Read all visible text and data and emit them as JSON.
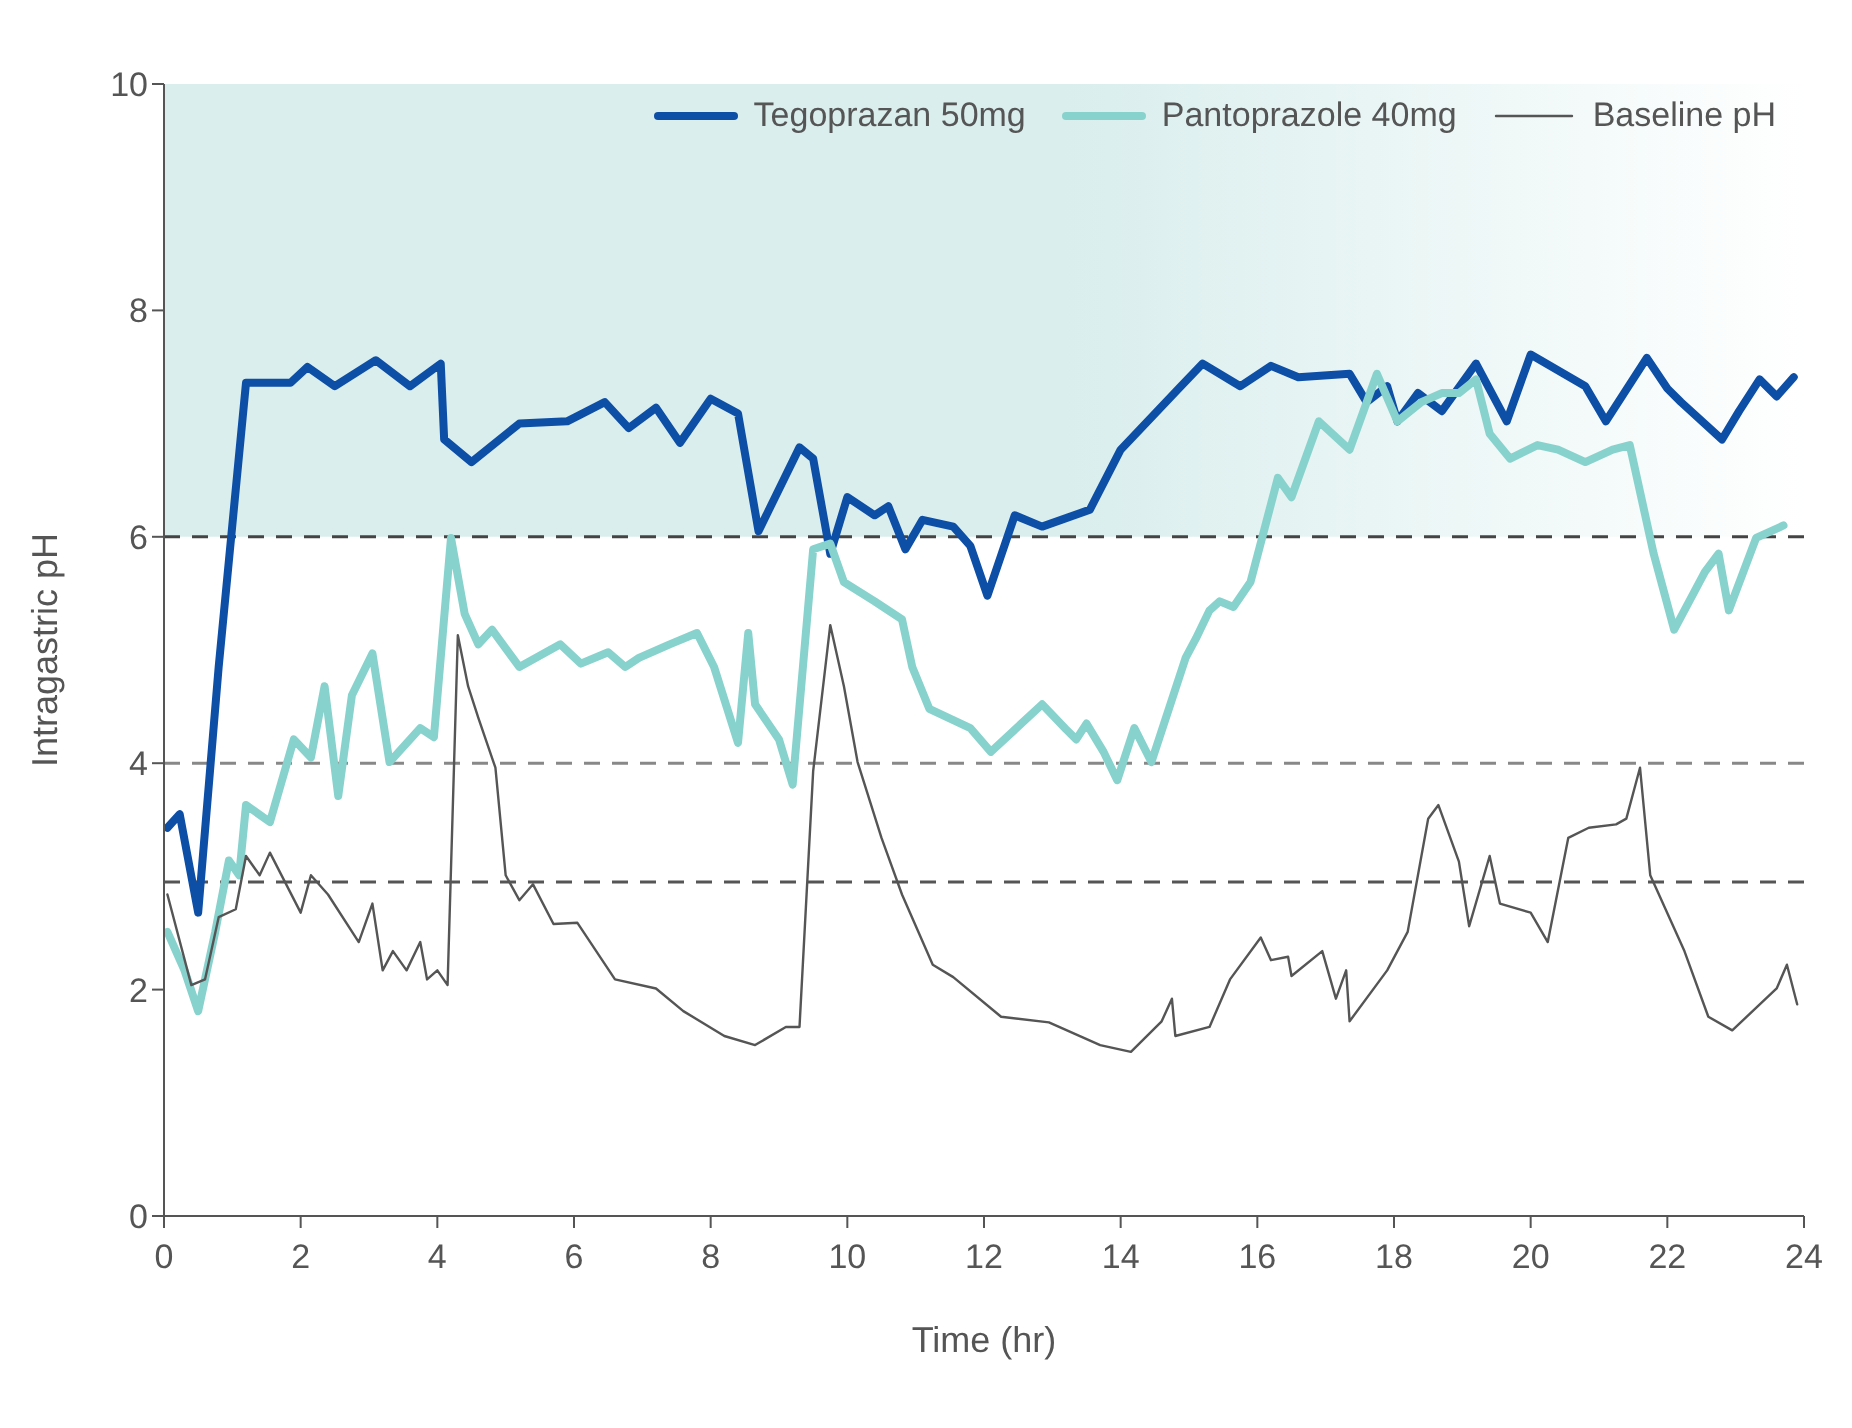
{
  "chart_data": {
    "type": "line",
    "xlabel": "Time (hr)",
    "ylabel": "Intragastric pH",
    "xlim": [
      0,
      24
    ],
    "xticks": [
      0,
      2,
      4,
      6,
      8,
      10,
      12,
      14,
      16,
      18,
      20,
      22,
      24
    ],
    "ylim": [
      0,
      10
    ],
    "yticks": [
      0,
      2,
      4,
      6,
      8,
      10
    ],
    "grid": false,
    "legend": "top right",
    "marker": "none",
    "line_style": "solid",
    "series": [
      {
        "name": "Tegoprazan 50mg",
        "color": "#0d4ea6",
        "x": [
          0.05,
          0.23,
          0.5,
          0.8,
          1.2,
          1.55,
          1.85,
          2.1,
          2.5,
          3.1,
          3.6,
          4.05,
          4.1,
          4.5,
          5.2,
          5.9,
          6.45,
          6.8,
          7.2,
          7.55,
          8.0,
          8.4,
          8.7,
          9.3,
          9.5,
          9.75,
          10.0,
          10.4,
          10.6,
          10.85,
          11.1,
          11.55,
          11.8,
          12.05,
          12.45,
          12.85,
          13.55,
          14.0,
          14.85,
          15.2,
          15.75,
          16.2,
          16.6,
          17.35,
          17.6,
          17.9,
          18.05,
          18.35,
          18.7,
          19.2,
          19.65,
          20.0,
          20.8,
          21.1,
          21.7,
          22.0,
          22.2,
          22.8,
          23.05,
          23.35,
          23.6,
          23.85
        ],
        "values": [
          3.43,
          3.55,
          2.68,
          4.85,
          7.36,
          7.36,
          7.36,
          7.5,
          7.33,
          7.56,
          7.33,
          7.53,
          6.86,
          6.66,
          7.0,
          7.02,
          7.19,
          6.96,
          7.14,
          6.83,
          7.22,
          7.09,
          6.05,
          6.79,
          6.69,
          5.85,
          6.35,
          6.19,
          6.27,
          5.89,
          6.15,
          6.09,
          5.92,
          5.48,
          6.19,
          6.09,
          6.24,
          6.77,
          7.31,
          7.53,
          7.33,
          7.51,
          7.41,
          7.44,
          7.19,
          7.33,
          7.02,
          7.27,
          7.11,
          7.53,
          7.02,
          7.61,
          7.33,
          7.02,
          7.58,
          7.31,
          7.19,
          6.86,
          7.11,
          7.39,
          7.24,
          7.41
        ]
      },
      {
        "name": "Pantoprazole 40mg",
        "color": "#88d2cd",
        "x": [
          0.05,
          0.3,
          0.5,
          0.75,
          0.95,
          1.1,
          1.2,
          1.55,
          1.9,
          2.15,
          2.35,
          2.55,
          2.75,
          3.05,
          3.3,
          3.75,
          3.95,
          4.2,
          4.4,
          4.6,
          4.8,
          5.2,
          5.8,
          6.1,
          6.5,
          6.75,
          6.95,
          7.4,
          7.8,
          8.05,
          8.4,
          8.55,
          8.65,
          9.0,
          9.2,
          9.5,
          9.75,
          9.95,
          10.4,
          10.8,
          10.95,
          11.2,
          11.8,
          12.1,
          12.85,
          13.2,
          13.35,
          13.5,
          13.75,
          13.95,
          14.2,
          14.45,
          14.95,
          15.1,
          15.3,
          15.45,
          15.65,
          15.9,
          16.3,
          16.5,
          16.9,
          17.35,
          17.75,
          18.05,
          18.4,
          18.7,
          18.95,
          19.2,
          19.4,
          19.7,
          20.1,
          20.4,
          20.8,
          21.2,
          21.45,
          21.8,
          22.1,
          22.55,
          22.75,
          22.9,
          23.3,
          23.7
        ],
        "values": [
          2.51,
          2.17,
          1.81,
          2.51,
          3.14,
          3.01,
          3.63,
          3.48,
          4.21,
          4.05,
          4.68,
          3.71,
          4.6,
          4.97,
          4.01,
          4.31,
          4.23,
          5.99,
          5.32,
          5.05,
          5.18,
          4.85,
          5.05,
          4.88,
          4.98,
          4.85,
          4.93,
          5.05,
          5.15,
          4.85,
          4.18,
          5.15,
          4.52,
          4.21,
          3.81,
          5.89,
          5.94,
          5.6,
          5.43,
          5.27,
          4.85,
          4.48,
          4.31,
          4.1,
          4.52,
          4.3,
          4.21,
          4.35,
          4.1,
          3.85,
          4.31,
          4.01,
          4.93,
          5.1,
          5.35,
          5.43,
          5.38,
          5.6,
          6.52,
          6.35,
          7.02,
          6.77,
          7.44,
          7.02,
          7.19,
          7.27,
          7.27,
          7.39,
          6.91,
          6.69,
          6.81,
          6.77,
          6.66,
          6.77,
          6.81,
          5.85,
          5.18,
          5.69,
          5.85,
          5.35,
          5.99,
          6.1
        ]
      },
      {
        "name": "Baseline pH",
        "color": "#555555",
        "x": [
          0.05,
          0.4,
          0.6,
          0.8,
          1.05,
          1.2,
          1.4,
          1.55,
          2.0,
          2.15,
          2.4,
          2.85,
          3.05,
          3.2,
          3.35,
          3.55,
          3.75,
          3.85,
          4.0,
          4.15,
          4.3,
          4.45,
          4.6,
          4.85,
          5.0,
          5.2,
          5.4,
          5.7,
          6.05,
          6.6,
          7.2,
          7.6,
          8.2,
          8.65,
          9.1,
          9.3,
          9.5,
          9.75,
          9.95,
          10.15,
          10.5,
          10.8,
          11.25,
          11.55,
          12.25,
          12.95,
          13.7,
          14.15,
          14.6,
          14.75,
          14.8,
          15.3,
          15.6,
          16.05,
          16.2,
          16.45,
          16.5,
          16.95,
          17.15,
          17.3,
          17.35,
          17.9,
          18.2,
          18.5,
          18.65,
          18.95,
          19.1,
          19.4,
          19.55,
          20.0,
          20.25,
          20.55,
          20.85,
          21.25,
          21.4,
          21.6,
          21.75,
          22.25,
          22.6,
          22.95,
          23.6,
          23.75,
          23.9
        ],
        "values": [
          2.84,
          2.04,
          2.09,
          2.64,
          2.71,
          3.18,
          3.01,
          3.21,
          2.68,
          3.01,
          2.84,
          2.42,
          2.76,
          2.17,
          2.34,
          2.17,
          2.42,
          2.09,
          2.17,
          2.04,
          5.13,
          4.68,
          4.4,
          3.96,
          3.01,
          2.79,
          2.93,
          2.58,
          2.59,
          2.09,
          2.01,
          1.81,
          1.59,
          1.51,
          1.67,
          1.67,
          3.93,
          5.22,
          4.68,
          4.01,
          3.34,
          2.84,
          2.22,
          2.11,
          1.76,
          1.71,
          1.51,
          1.45,
          1.72,
          1.92,
          1.59,
          1.67,
          2.09,
          2.46,
          2.26,
          2.29,
          2.12,
          2.34,
          1.92,
          2.17,
          1.72,
          2.17,
          2.51,
          3.51,
          3.63,
          3.13,
          2.56,
          3.18,
          2.76,
          2.68,
          2.42,
          3.34,
          3.43,
          3.46,
          3.51,
          3.96,
          3.01,
          2.34,
          1.76,
          1.64,
          2.01,
          2.22,
          1.87
        ]
      }
    ],
    "ref_lines": [
      {
        "axis": "y",
        "value": 6,
        "color": "#444444",
        "line_style": "dashed"
      },
      {
        "axis": "y",
        "value": 4,
        "color": "#888888",
        "line_style": "dashed"
      },
      {
        "axis": "y",
        "value": 2.95,
        "color": "#555555",
        "line_style": "dashed"
      }
    ],
    "bands": [
      {
        "axis": "y",
        "from": 6,
        "to": 10,
        "color": "#d9eeed"
      }
    ]
  }
}
